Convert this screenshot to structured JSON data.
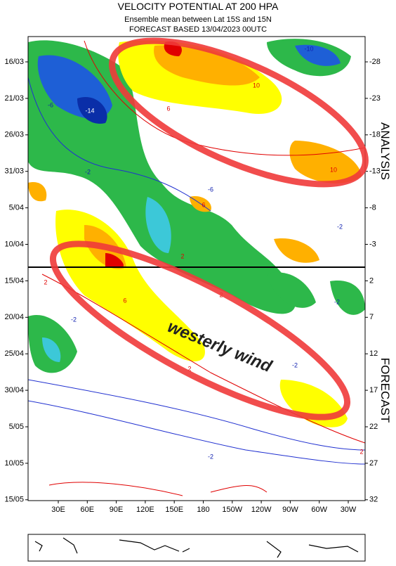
{
  "header": {
    "title": "VELOCITY POTENTIAL AT 200 HPA",
    "subtitle": "Ensemble mean between  Lat 15S and 15N",
    "forecast_line": "FORECAST  BASED 13/04/2023 00UTC"
  },
  "axes": {
    "left": [
      "16/03",
      "21/03",
      "26/03",
      "31/03",
      "5/04",
      "10/04",
      "15/04",
      "20/04",
      "25/04",
      "30/04",
      "5/05",
      "10/05",
      "15/05"
    ],
    "right": [
      "-28",
      "-23",
      "-18",
      "-13",
      "-8",
      "-3",
      "2",
      "7",
      "12",
      "17",
      "22",
      "27",
      "32"
    ],
    "bottom": [
      "30E",
      "60E",
      "90E",
      "120E",
      "150E",
      "180",
      "150W",
      "120W",
      "90W",
      "60W",
      "30W"
    ]
  },
  "sections": {
    "analysis": "ANALYSIS",
    "forecast": "FORECAST"
  },
  "annotation": "westerly wind",
  "contour_labels": [
    "-10",
    "-14",
    "-6",
    "-2",
    "10",
    "-6",
    "2",
    "6",
    "10",
    "-2",
    "6",
    "-2",
    "2",
    "2",
    "-2",
    "2",
    "6",
    "-2",
    "-2",
    "2"
  ]
}
